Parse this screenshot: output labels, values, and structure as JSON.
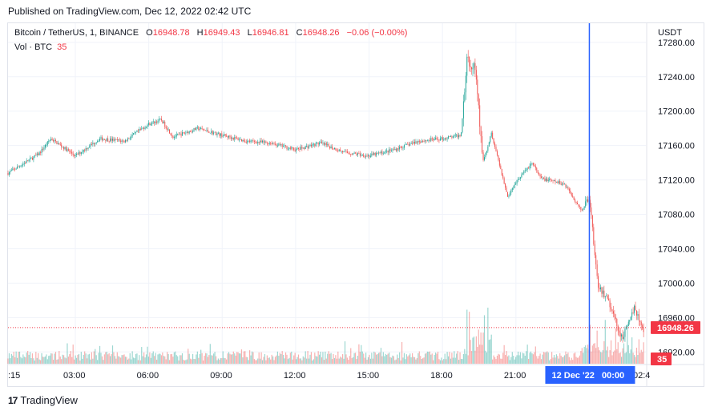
{
  "header": {
    "published": "Published on TradingView.com, Dec 12, 2022 02:42 UTC"
  },
  "legend": {
    "symbol": "Bitcoin / TetherUS, 1, BINANCE",
    "o_key": "O",
    "o": "16948.78",
    "h_key": "H",
    "h": "16949.43",
    "l_key": "L",
    "l": "16946.81",
    "c_key": "C",
    "c": "16948.26",
    "change": "−0.06 (−0.00%)",
    "vol_label": "Vol · BTC",
    "vol_value": "35"
  },
  "axis": {
    "currency": "USDT",
    "price_ticks": [
      "17280.00",
      "17240.00",
      "17200.00",
      "17160.00",
      "17120.00",
      "17080.00",
      "17040.00",
      "17000.00",
      "16960.00",
      "16920.00"
    ],
    "time_ticks": [
      ":15",
      "03:00",
      "06:00",
      "09:00",
      "12:00",
      "15:00",
      "18:00",
      "21:00",
      "02:4"
    ],
    "crosshair_label": "12 Dec '22   00:00",
    "last_price_label": "16948.26",
    "last_volume_label": "35"
  },
  "colors": {
    "up": "#26a69a",
    "down": "#ef5350",
    "crosshair": "#2962ff",
    "last": "#f23645"
  },
  "footer": {
    "brand": "TradingView",
    "logo": "17"
  },
  "chart_data": {
    "type": "candlestick",
    "symbol": "BTC/USDT",
    "interval": "1 minute",
    "ylim": [
      16910,
      17300
    ],
    "y_ticks": [
      16920,
      16960,
      17000,
      17040,
      17080,
      17120,
      17160,
      17200,
      17240,
      17280
    ],
    "x_ticks": [
      ":15",
      "03:00",
      "06:00",
      "09:00",
      "12:00",
      "15:00",
      "18:00",
      "21:00",
      "02:4"
    ],
    "close_path": [
      {
        "t": "00:15",
        "close": 17128
      },
      {
        "t": "01:30",
        "close": 17150
      },
      {
        "t": "02:00",
        "close": 17168
      },
      {
        "t": "03:00",
        "close": 17148
      },
      {
        "t": "04:00",
        "close": 17168
      },
      {
        "t": "05:00",
        "close": 17165
      },
      {
        "t": "06:00",
        "close": 17185
      },
      {
        "t": "06:30",
        "close": 17190
      },
      {
        "t": "07:00",
        "close": 17170
      },
      {
        "t": "08:00",
        "close": 17180
      },
      {
        "t": "09:00",
        "close": 17172
      },
      {
        "t": "10:00",
        "close": 17165
      },
      {
        "t": "11:00",
        "close": 17163
      },
      {
        "t": "12:00",
        "close": 17155
      },
      {
        "t": "13:00",
        "close": 17163
      },
      {
        "t": "14:00",
        "close": 17152
      },
      {
        "t": "15:00",
        "close": 17148
      },
      {
        "t": "16:00",
        "close": 17155
      },
      {
        "t": "17:00",
        "close": 17165
      },
      {
        "t": "18:00",
        "close": 17168
      },
      {
        "t": "18:45",
        "close": 17172
      },
      {
        "t": "19:00",
        "close": 17260
      },
      {
        "t": "19:20",
        "close": 17250
      },
      {
        "t": "19:40",
        "close": 17140
      },
      {
        "t": "20:00",
        "close": 17175
      },
      {
        "t": "20:40",
        "close": 17100
      },
      {
        "t": "21:00",
        "close": 17118
      },
      {
        "t": "21:40",
        "close": 17140
      },
      {
        "t": "22:00",
        "close": 17122
      },
      {
        "t": "23:00",
        "close": 17115
      },
      {
        "t": "23:40",
        "close": 17085
      },
      {
        "t": "00:00",
        "close": 17100
      },
      {
        "t": "00:20",
        "close": 17000
      },
      {
        "t": "00:50",
        "close": 16975
      },
      {
        "t": "01:20",
        "close": 16935
      },
      {
        "t": "01:50",
        "close": 16970
      },
      {
        "t": "02:20",
        "close": 16940
      },
      {
        "t": "02:42",
        "close": 16948.26
      }
    ],
    "last_price": 16948.26,
    "last_volume": 35
  }
}
